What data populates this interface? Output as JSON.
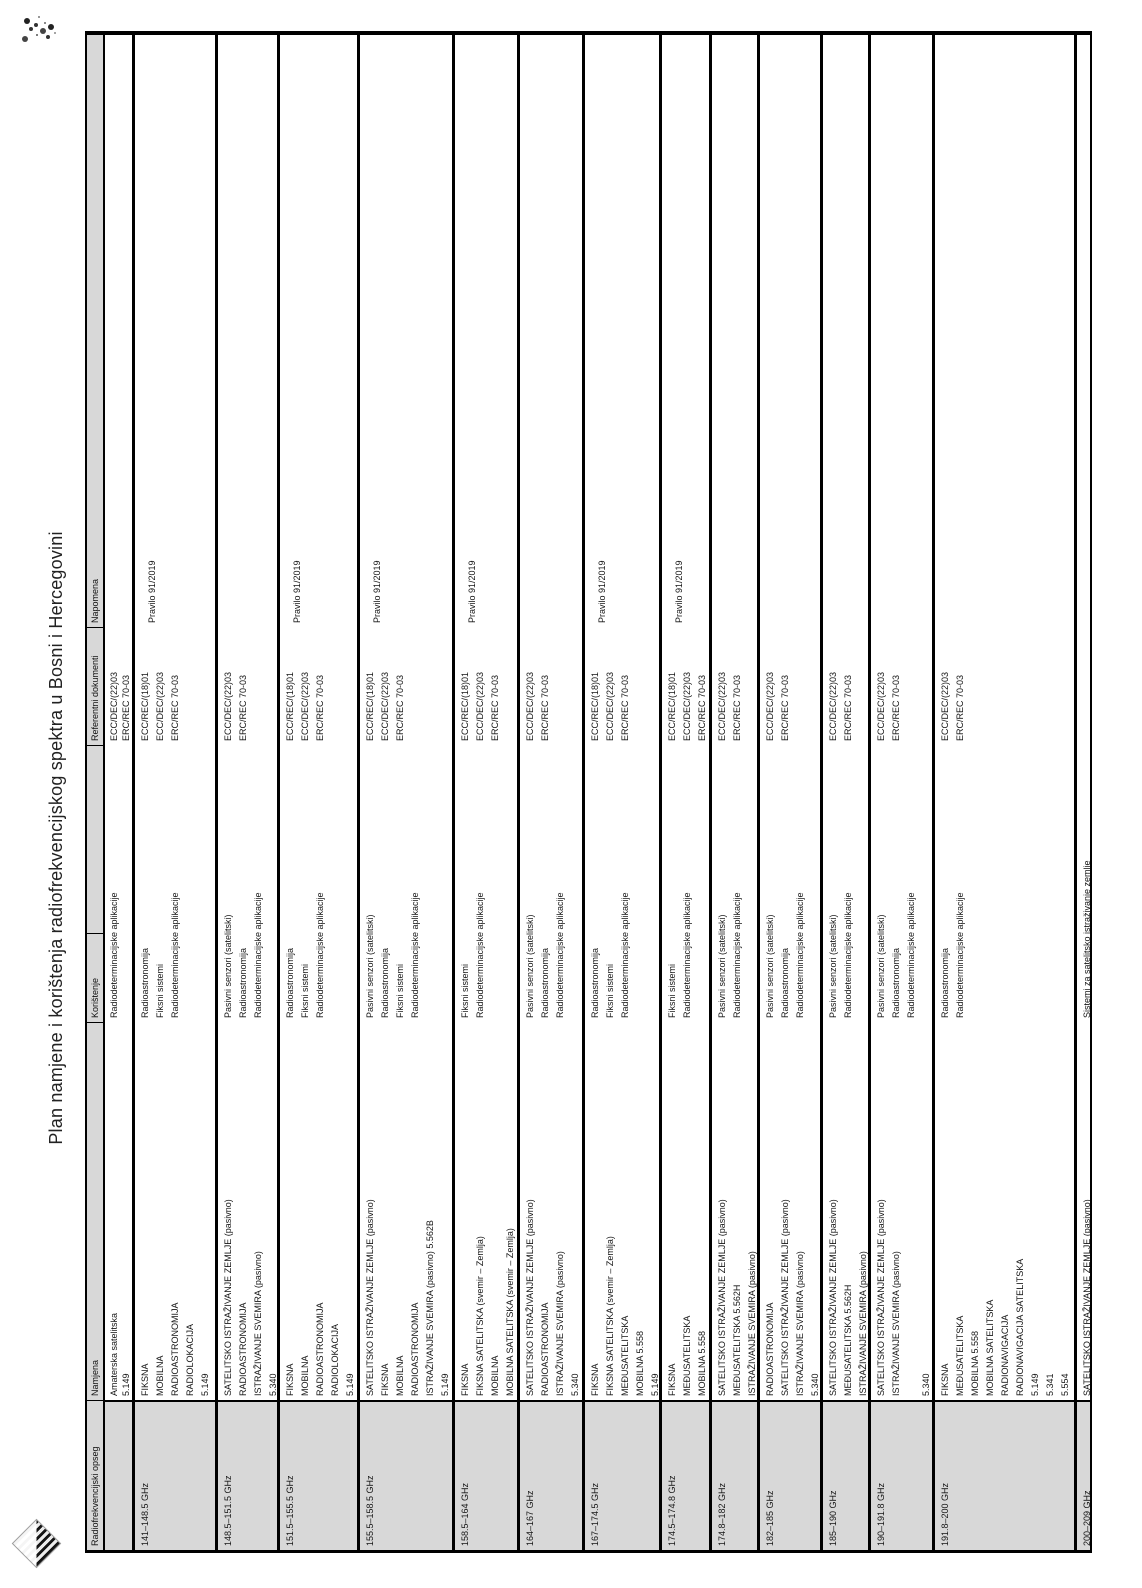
{
  "title": "Plan namjene i korištenja radiofrekvencijskog spektra u Bosni i Hercegovini",
  "colors": {
    "header_bg": "#d8d8d8",
    "band_bg": "#d8d8d8",
    "border": "#000000",
    "page_bg": "#ffffff"
  },
  "decorations": {
    "top_corner_mark": "ink-speckles",
    "bottom_corner_mark": "striped-corner-stamp"
  },
  "table": {
    "columns": [
      "Radiofrekvencijski opseg",
      "Namjena",
      "Korištenje",
      "Referentni dokumenti",
      "Napomena"
    ],
    "rows": [
      {
        "band": "",
        "namjena": [
          "Amaterska satelitska",
          "5.149"
        ],
        "koristenje": [
          "Radiodeterminacijske aplikacije"
        ],
        "referentni": [
          "ECC/DEC/(22)03",
          "ERC/REC 70-03"
        ],
        "napomena": ""
      },
      {
        "band": "141–148.5 GHz",
        "namjena": [
          "FIKSNA",
          "MOBILNA",
          "RADIOASTRONOMIJA",
          "RADIOLOKACIJA",
          "5.149"
        ],
        "koristenje": [
          "Radioastronomija",
          "Fiksni sistemi",
          "Radiodeterminacijske aplikacije"
        ],
        "referentni": [
          "ECC/REC/(18)01",
          "ECC/DEC/(22)03",
          "ERC/REC 70-03"
        ],
        "napomena": "Pravilo 91/2019"
      },
      {
        "band": "148.5–151.5 GHz",
        "namjena": [
          "SATELITSKO ISTRAŽIVANJE ZEMLJE (pasivno)",
          "RADIOASTRONOMIJA",
          "ISTRAŽIVANJE SVEMIRA (pasivno)",
          "5.340"
        ],
        "koristenje": [
          "Pasivni senzori (satelitski)",
          "Radioastronomija",
          "Radiodeterminacijske aplikacije"
        ],
        "referentni": [
          "ECC/DEC/(22)03",
          "ERC/REC 70-03"
        ],
        "napomena": ""
      },
      {
        "band": "151.5–155.5 GHz",
        "namjena": [
          "FIKSNA",
          "MOBILNA",
          "RADIOASTRONOMIJA",
          "RADIOLOKACIJA",
          "5.149"
        ],
        "koristenje": [
          "Radioastronomija",
          "Fiksni sistemi",
          "Radiodeterminacijske aplikacije"
        ],
        "referentni": [
          "ECC/REC/(18)01",
          "ECC/DEC/(22)03",
          "ERC/REC 70-03"
        ],
        "napomena": "Pravilo 91/2019"
      },
      {
        "band": "155.5–158.5 GHz",
        "namjena": [
          "SATELITSKO ISTRAŽIVANJE ZEMLJE (pasivno)",
          "FIKSNA",
          "MOBILNA",
          "RADIOASTRONOMIJA",
          "ISTRAŽIVANJE SVEMIRA (pasivno) 5.562B",
          "5.149"
        ],
        "koristenje": [
          "Pasivni senzori (satelitski)",
          "Radioastronomija",
          "Fiksni sistemi",
          "Radiodeterminacijske aplikacije"
        ],
        "referentni": [
          "ECC/REC/(18)01",
          "ECC/DEC/(22)03",
          "ERC/REC 70-03"
        ],
        "napomena": "Pravilo 91/2019"
      },
      {
        "band": "158.5–164 GHz",
        "namjena": [
          "FIKSNA",
          "FIKSNA SATELITSKA (svemir – Zemlja)",
          "MOBILNA",
          "MOBILNA SATELITSKA (svemir – Zemlja)"
        ],
        "koristenje": [
          "Fiksni sistemi",
          "Radiodeterminacijske aplikacije"
        ],
        "referentni": [
          "ECC/REC/(18)01",
          "ECC/DEC/(22)03",
          "ERC/REC 70-03"
        ],
        "napomena": "Pravilo 91/2019"
      },
      {
        "band": "164–167 GHz",
        "namjena": [
          "SATELITSKO ISTRAŽIVANJE ZEMLJE (pasivno)",
          "RADIOASTRONOMIJA",
          "ISTRAŽIVANJE SVEMIRA (pasivno)",
          "5.340"
        ],
        "koristenje": [
          "Pasivni senzori (satelitski)",
          "Radioastronomija",
          "Radiodeterminacijske aplikacije"
        ],
        "referentni": [
          "ECC/DEC/(22)03",
          "ERC/REC 70-03"
        ],
        "napomena": ""
      },
      {
        "band": "167–174.5 GHz",
        "namjena": [
          "FIKSNA",
          "FIKSNA SATELITSKA (svemir – Zemlja)",
          "MEĐUSATELITSKA",
          "MOBILNA 5.558",
          "5.149"
        ],
        "koristenje": [
          "Radioastronomija",
          "Fiksni sistemi",
          "Radiodeterminacijske aplikacije"
        ],
        "referentni": [
          "ECC/REC/(18)01",
          "ECC/DEC/(22)03",
          "ERC/REC 70-03"
        ],
        "napomena": "Pravilo 91/2019"
      },
      {
        "band": "174.5–174.8 GHz",
        "namjena": [
          "FIKSNA",
          "MEĐUSATELITSKA",
          "MOBILNA 5.558"
        ],
        "koristenje": [
          "Fiksni sistemi",
          "Radiodeterminacijske aplikacije"
        ],
        "referentni": [
          "ECC/REC/(18)01",
          "ECC/DEC/(22)03",
          "ERC/REC 70-03"
        ],
        "napomena": "Pravilo 91/2019"
      },
      {
        "band": "174.8–182 GHz",
        "namjena": [
          "SATELITSKO ISTRAŽIVANJE ZEMLJE (pasivno)",
          "MEĐUSATELITSKA 5.562H",
          "ISTRAŽIVANJE SVEMIRA (pasivno)"
        ],
        "koristenje": [
          "Pasivni senzori (satelitski)",
          "Radiodeterminacijske aplikacije"
        ],
        "referentni": [
          "ECC/DEC/(22)03",
          "ERC/REC 70-03"
        ],
        "napomena": ""
      },
      {
        "band": "182–185 GHz",
        "namjena": [
          "RADIOASTRONOMIJA",
          "SATELITSKO ISTRAŽIVANJE ZEMLJE (pasivno)",
          "ISTRAŽIVANJE SVEMIRA (pasivno)",
          "5.340"
        ],
        "koristenje": [
          "Pasivni senzori (satelitski)",
          "Radioastronomija",
          "Radiodeterminacijske aplikacije"
        ],
        "referentni": [
          "ECC/DEC/(22)03",
          "ERC/REC 70-03"
        ],
        "napomena": ""
      },
      {
        "band": "185–190 GHz",
        "namjena": [
          "SATELITSKO ISTRAŽIVANJE ZEMLJE (pasivno)",
          "MEĐUSATELITSKA 5.562H",
          "ISTRAŽIVANJE SVEMIRA (pasivno)"
        ],
        "koristenje": [
          "Pasivni senzori (satelitski)",
          "Radiodeterminacijske aplikacije"
        ],
        "referentni": [
          "ECC/DEC/(22)03",
          "ERC/REC 70-03"
        ],
        "napomena": ""
      },
      {
        "band": "190–191.8 GHz",
        "namjena": [
          "SATELITSKO ISTRAŽIVANJE ZEMLJE (pasivno)",
          "ISTRAŽIVANJE SVEMIRA (pasivno)",
          "",
          "5.340"
        ],
        "koristenje": [
          "Pasivni senzori (satelitski)",
          "Radioastronomija",
          "Radiodeterminacijske aplikacije"
        ],
        "referentni": [
          "ECC/DEC/(22)03",
          "ERC/REC 70-03"
        ],
        "napomena": ""
      },
      {
        "band": "191.8–200 GHz",
        "namjena": [
          "FIKSNA",
          "MEĐUSATELITSKA",
          "MOBILNA 5.558",
          "MOBILNA SATELITSKA",
          "RADIONAVIGACIJA",
          "RADIONAVIGACIJA SATELITSKA",
          "5.149",
          "5.341",
          "5.554"
        ],
        "koristenje": [
          "Radioastronomija",
          "Radiodeterminacijske aplikacije"
        ],
        "referentni": [
          "ECC/DEC/(22)03",
          "ERC/REC 70-03"
        ],
        "napomena": ""
      },
      {
        "band": "200–209 GHz",
        "namjena": [
          "SATELITSKO ISTRAŽIVANJE ZEMLJE (pasivno)"
        ],
        "koristenje": [
          "Sistemi za satelitsko istraživanje zemlje"
        ],
        "referentni": [],
        "napomena": ""
      }
    ]
  }
}
